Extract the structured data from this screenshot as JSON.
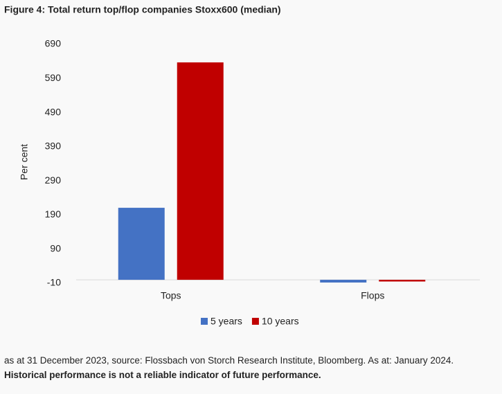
{
  "chart_data": {
    "type": "bar",
    "title": "Figure 4: Total return top/flop companies Stoxx600 (median)",
    "y_label": "Per cent",
    "categories": [
      "Tops",
      "Flops"
    ],
    "series": [
      {
        "name": "5 years",
        "color": "#4472c4",
        "values": [
          211,
          -8
        ]
      },
      {
        "name": "10 years",
        "color": "#c00000",
        "values": [
          637,
          -5
        ]
      }
    ],
    "ylim": [
      -10,
      690
    ],
    "yticks": [
      -10,
      90,
      190,
      290,
      390,
      490,
      590,
      690
    ],
    "grid": false,
    "legend": "bottom"
  },
  "footnote": {
    "text": "as at 31 December 2023, source: Flossbach von Storch Research Institute, Bloomberg. As at: January 2024.",
    "bold": "Historical performance is not a reliable indicator of future performance."
  }
}
